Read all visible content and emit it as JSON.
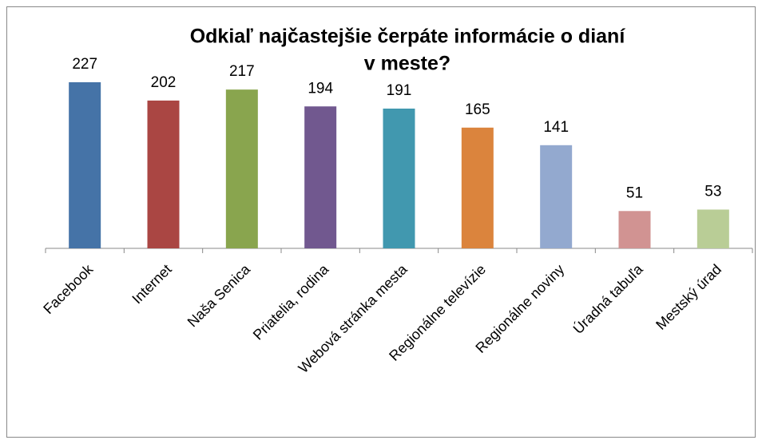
{
  "chart_data": {
    "type": "bar",
    "title": [
      "Odkiaľ najčastejšie čerpáte informácie o dianí",
      "v meste?"
    ],
    "categories": [
      "Facebook",
      "Internet",
      "Naša Senica",
      "Priatelia, rodina",
      "Webová stránka mesta",
      "Regionálne televízie",
      "Regionálne noviny",
      "Úradná tabuľa",
      "Mestský úrad"
    ],
    "values": [
      227,
      202,
      217,
      194,
      191,
      165,
      141,
      51,
      53
    ],
    "colors": [
      "#4573a7",
      "#aa4643",
      "#89a54e",
      "#71588f",
      "#4198af",
      "#db843d",
      "#93a9cf",
      "#d19392",
      "#b9cd96"
    ]
  }
}
